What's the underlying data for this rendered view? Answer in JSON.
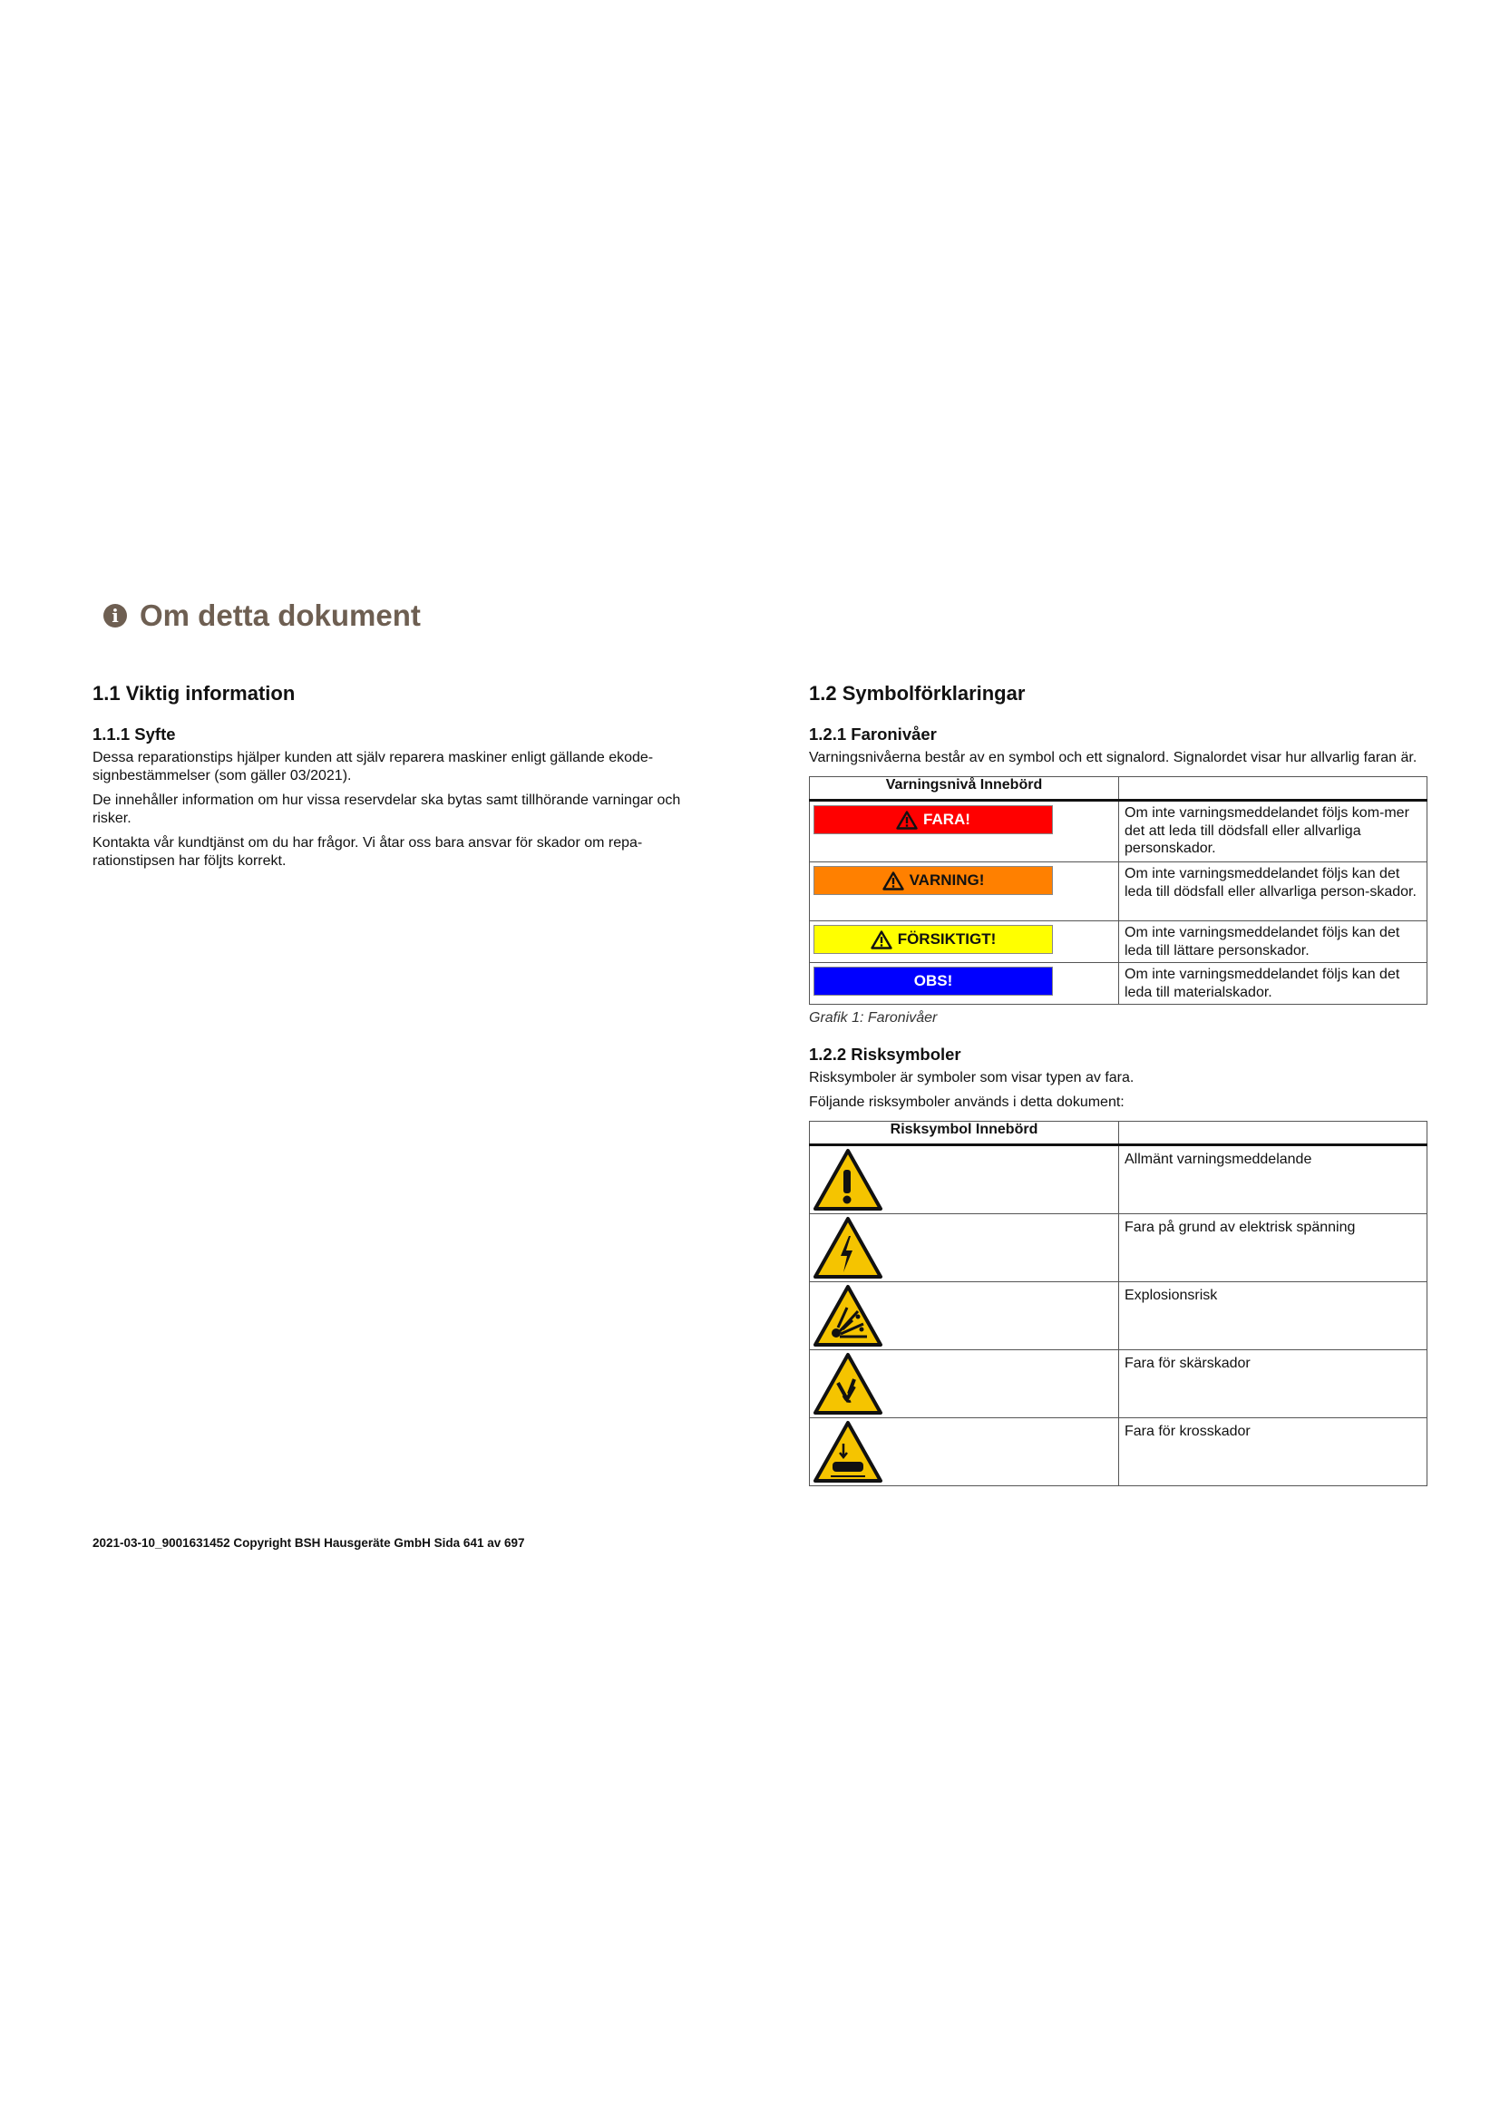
{
  "chapter": {
    "title": "Om detta dokument",
    "icon": "info-circle-icon"
  },
  "left": {
    "heading": "1.1 Viktig information",
    "subheading": "1.1.1 Syfte",
    "paragraphs": [
      "Dessa reparationstips hjälper kunden att själv reparera maskiner enligt gällande ekode-signbestämmelser (som gäller 03/2021).",
      "De innehåller information om hur vissa reservdelar ska bytas samt tillhörande varningar och risker.",
      "Kontakta vår kundtjänst om du har frågor. Vi åtar oss bara ansvar för skador om repa-rationstipsen har följts korrekt."
    ]
  },
  "right": {
    "heading": "1.2 Symbolförklaringar",
    "levels": {
      "subheading": "1.2.1 Faronivåer",
      "intro": "Varningsnivåerna består av en symbol och ett signalord. Signalordet visar hur allvarlig faran är.",
      "header": "Varningsnivå Innebörd",
      "rows": [
        {
          "label": "FARA!",
          "color": "#ff0000",
          "text_color": "#ffffff",
          "warning_icon": true,
          "meaning": "Om inte varningsmeddelandet följs kom-mer det att leda till dödsfall eller allvarliga personskador."
        },
        {
          "label": "VARNING!",
          "color": "#ff8000",
          "text_color": "#111111",
          "warning_icon": true,
          "meaning": "Om inte varningsmeddelandet följs kan det leda till dödsfall eller allvarliga person-skador."
        },
        {
          "label": "FÖRSIKTIGT!",
          "color": "#ffff00",
          "text_color": "#111111",
          "warning_icon": true,
          "meaning": "Om inte varningsmeddelandet följs kan det leda till lättare personskador."
        },
        {
          "label": "OBS!",
          "color": "#0000ff",
          "text_color": "#ffffff",
          "warning_icon": false,
          "meaning": "Om inte varningsmeddelandet följs kan det leda till materialskador."
        }
      ],
      "caption": "Grafik 1: Faronivåer"
    },
    "risks": {
      "subheading": "1.2.2 Risksymboler",
      "intro1": "Risksymboler är symboler som visar typen av fara.",
      "intro2": "Följande risksymboler används i detta dokument:",
      "header": "Risksymbol Innebörd",
      "rows": [
        {
          "icon": "general-warning-icon",
          "meaning": "Allmänt varningsmeddelande"
        },
        {
          "icon": "electric-voltage-icon",
          "meaning": "Fara på grund av elektrisk spänning"
        },
        {
          "icon": "explosion-icon",
          "meaning": "Explosionsrisk"
        },
        {
          "icon": "cut-hazard-icon",
          "meaning": "Fara för skärskador"
        },
        {
          "icon": "crush-hazard-icon",
          "meaning": "Fara för krosskador"
        }
      ]
    }
  },
  "footer": "2021-03-10_9001631452 Copyright BSH Hausgeräte GmbH Sida 641 av 697",
  "colors": {
    "chapter": "#6e5f52",
    "hazard_yellow": "#f5c400"
  }
}
